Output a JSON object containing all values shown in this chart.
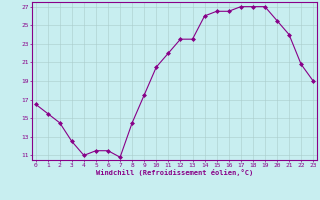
{
  "x": [
    0,
    1,
    2,
    3,
    4,
    5,
    6,
    7,
    8,
    9,
    10,
    11,
    12,
    13,
    14,
    15,
    16,
    17,
    18,
    19,
    20,
    21,
    22,
    23
  ],
  "y": [
    16.5,
    15.5,
    14.5,
    12.5,
    11.0,
    11.5,
    11.5,
    10.8,
    14.5,
    17.5,
    20.5,
    22.0,
    23.5,
    23.5,
    26.0,
    26.5,
    26.5,
    27.0,
    27.0,
    27.0,
    25.5,
    24.0,
    20.8,
    19.0
  ],
  "ylim": [
    10.5,
    27.5
  ],
  "yticks": [
    11,
    13,
    15,
    17,
    19,
    21,
    23,
    25,
    27
  ],
  "xticks": [
    0,
    1,
    2,
    3,
    4,
    5,
    6,
    7,
    8,
    9,
    10,
    11,
    12,
    13,
    14,
    15,
    16,
    17,
    18,
    19,
    20,
    21,
    22,
    23
  ],
  "xlabel": "Windchill (Refroidissement éolien,°C)",
  "line_color": "#880088",
  "marker": "D",
  "marker_size": 2.0,
  "bg_color": "#c8eef0",
  "grid_color": "#aacccc",
  "label_color": "#880088",
  "tick_color": "#880088",
  "font_size_tick": 4.5,
  "font_size_label": 5.0,
  "linewidth": 0.8
}
